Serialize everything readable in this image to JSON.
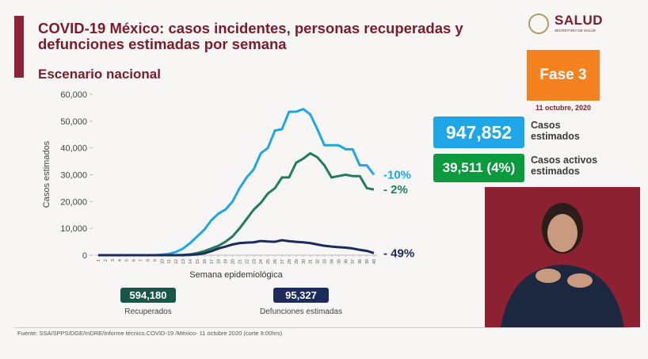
{
  "header": {
    "title": "COVID-19 México: casos incidentes, personas recuperadas y defunciones estimadas por semana",
    "subtitle": "Escenario nacional",
    "logo_text": "SALUD",
    "logo_subtext": "SECRETARÍA DE SALUD"
  },
  "phase": {
    "label": "Fase 3",
    "date": "11 octubre, 2020"
  },
  "summary": [
    {
      "value": "947,852",
      "label": "Casos estimados"
    },
    {
      "value": "39,511 (4%)",
      "label": "Casos activos estimados"
    },
    {
      "value": "594,180",
      "label": "Recuperados"
    },
    {
      "value": "95,327",
      "label": "Defunciones estimadas"
    }
  ],
  "chart_data": {
    "type": "line",
    "y_label": "Casos estimados",
    "x_label": "Semana epidemiológica",
    "x": [
      1,
      2,
      3,
      4,
      5,
      6,
      7,
      8,
      9,
      10,
      11,
      12,
      13,
      14,
      15,
      16,
      17,
      18,
      19,
      20,
      21,
      22,
      23,
      24,
      25,
      26,
      27,
      28,
      29,
      30,
      31,
      32,
      33,
      34,
      35,
      36,
      37,
      38,
      39,
      40
    ],
    "xlim": [
      1,
      40
    ],
    "xticks": [
      1,
      2,
      3,
      4,
      5,
      6,
      7,
      8,
      9,
      10,
      11,
      12,
      13,
      14,
      15,
      16,
      17,
      18,
      19,
      20,
      21,
      22,
      23,
      24,
      25,
      26,
      27,
      28,
      29,
      30,
      31,
      32,
      33,
      34,
      35,
      36,
      37,
      38,
      39,
      40
    ],
    "ylim": [
      0,
      60000
    ],
    "yticks": [
      0,
      {
        "value": 10000,
        "label": "10,000"
      },
      {
        "value": 20000,
        "label": "20,000"
      },
      {
        "value": 30000,
        "label": "30,000"
      },
      {
        "value": 40000,
        "label": "40,000"
      },
      {
        "value": 50000,
        "label": "50,000"
      },
      {
        "value": 60000,
        "label": "60,000"
      }
    ],
    "series": [
      {
        "color": "#1fa6e8",
        "end_label": "-10%",
        "values": [
          0,
          0,
          0,
          0,
          0,
          0,
          0,
          0,
          0,
          200,
          500,
          1200,
          2500,
          4500,
          7000,
          9500,
          13000,
          15500,
          17000,
          20000,
          25000,
          29000,
          32000,
          38000,
          40000,
          46500,
          47000,
          53500,
          53500,
          54500,
          52500,
          47000,
          41000,
          41000,
          41000,
          39500,
          39500,
          33500,
          33500,
          30000
        ]
      },
      {
        "color": "#1f7d5c",
        "end_label": "- 2%",
        "values": [
          0,
          0,
          0,
          0,
          0,
          0,
          0,
          0,
          0,
          0,
          0,
          0,
          100,
          300,
          800,
          1500,
          2500,
          3500,
          5000,
          7000,
          10000,
          13500,
          17000,
          19500,
          23000,
          25000,
          29000,
          29000,
          34500,
          36000,
          38000,
          36500,
          33500,
          29000,
          29500,
          30000,
          29500,
          29500,
          25000,
          24500
        ]
      },
      {
        "color": "#1d2a5c",
        "end_label": "- 49%",
        "values": [
          0,
          0,
          0,
          0,
          0,
          0,
          0,
          0,
          0,
          0,
          0,
          0,
          0,
          100,
          300,
          700,
          1500,
          2500,
          3200,
          4000,
          4500,
          4700,
          4800,
          5300,
          5100,
          5000,
          5600,
          5200,
          5000,
          4800,
          4500,
          4000,
          3500,
          3200,
          3000,
          2800,
          2500,
          2000,
          1600,
          800
        ]
      }
    ]
  },
  "footer": "Fuente: SSA/SPPS/DGE/InDRE/Informe técnico.COVID-19 /México- 11 octubre 2020 (corte 9:00hrs)"
}
